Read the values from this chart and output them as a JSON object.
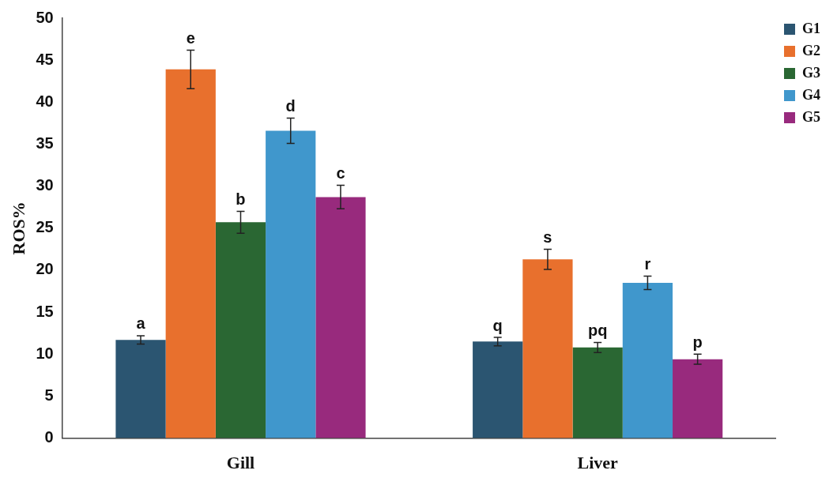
{
  "chart_data": {
    "type": "bar",
    "ylabel": "ROS%",
    "categories": [
      "Gill",
      "Liver"
    ],
    "series": [
      {
        "name": "G1",
        "color": "#2b5571",
        "values": [
          11.7,
          11.5
        ],
        "errors": [
          0.5,
          0.5
        ],
        "value_labels": [
          "a",
          "q"
        ]
      },
      {
        "name": "G2",
        "color": "#e8702d",
        "values": [
          43.9,
          21.3
        ],
        "errors": [
          2.3,
          1.2
        ],
        "value_labels": [
          "e",
          "s"
        ]
      },
      {
        "name": "G3",
        "color": "#2a6733",
        "values": [
          25.7,
          10.8
        ],
        "errors": [
          1.3,
          0.6
        ],
        "value_labels": [
          "b",
          "pq"
        ]
      },
      {
        "name": "G4",
        "color": "#4097cc",
        "values": [
          36.6,
          18.5
        ],
        "errors": [
          1.5,
          0.8
        ],
        "value_labels": [
          "d",
          "r"
        ]
      },
      {
        "name": "G5",
        "color": "#982a7d",
        "values": [
          28.7,
          9.4
        ],
        "errors": [
          1.4,
          0.6
        ],
        "value_labels": [
          "c",
          "p"
        ]
      }
    ],
    "ylim": [
      0,
      50
    ],
    "yticks": [
      0,
      5,
      10,
      15,
      20,
      25,
      30,
      35,
      40,
      45,
      50
    ],
    "grid": false,
    "legend": "top right"
  }
}
